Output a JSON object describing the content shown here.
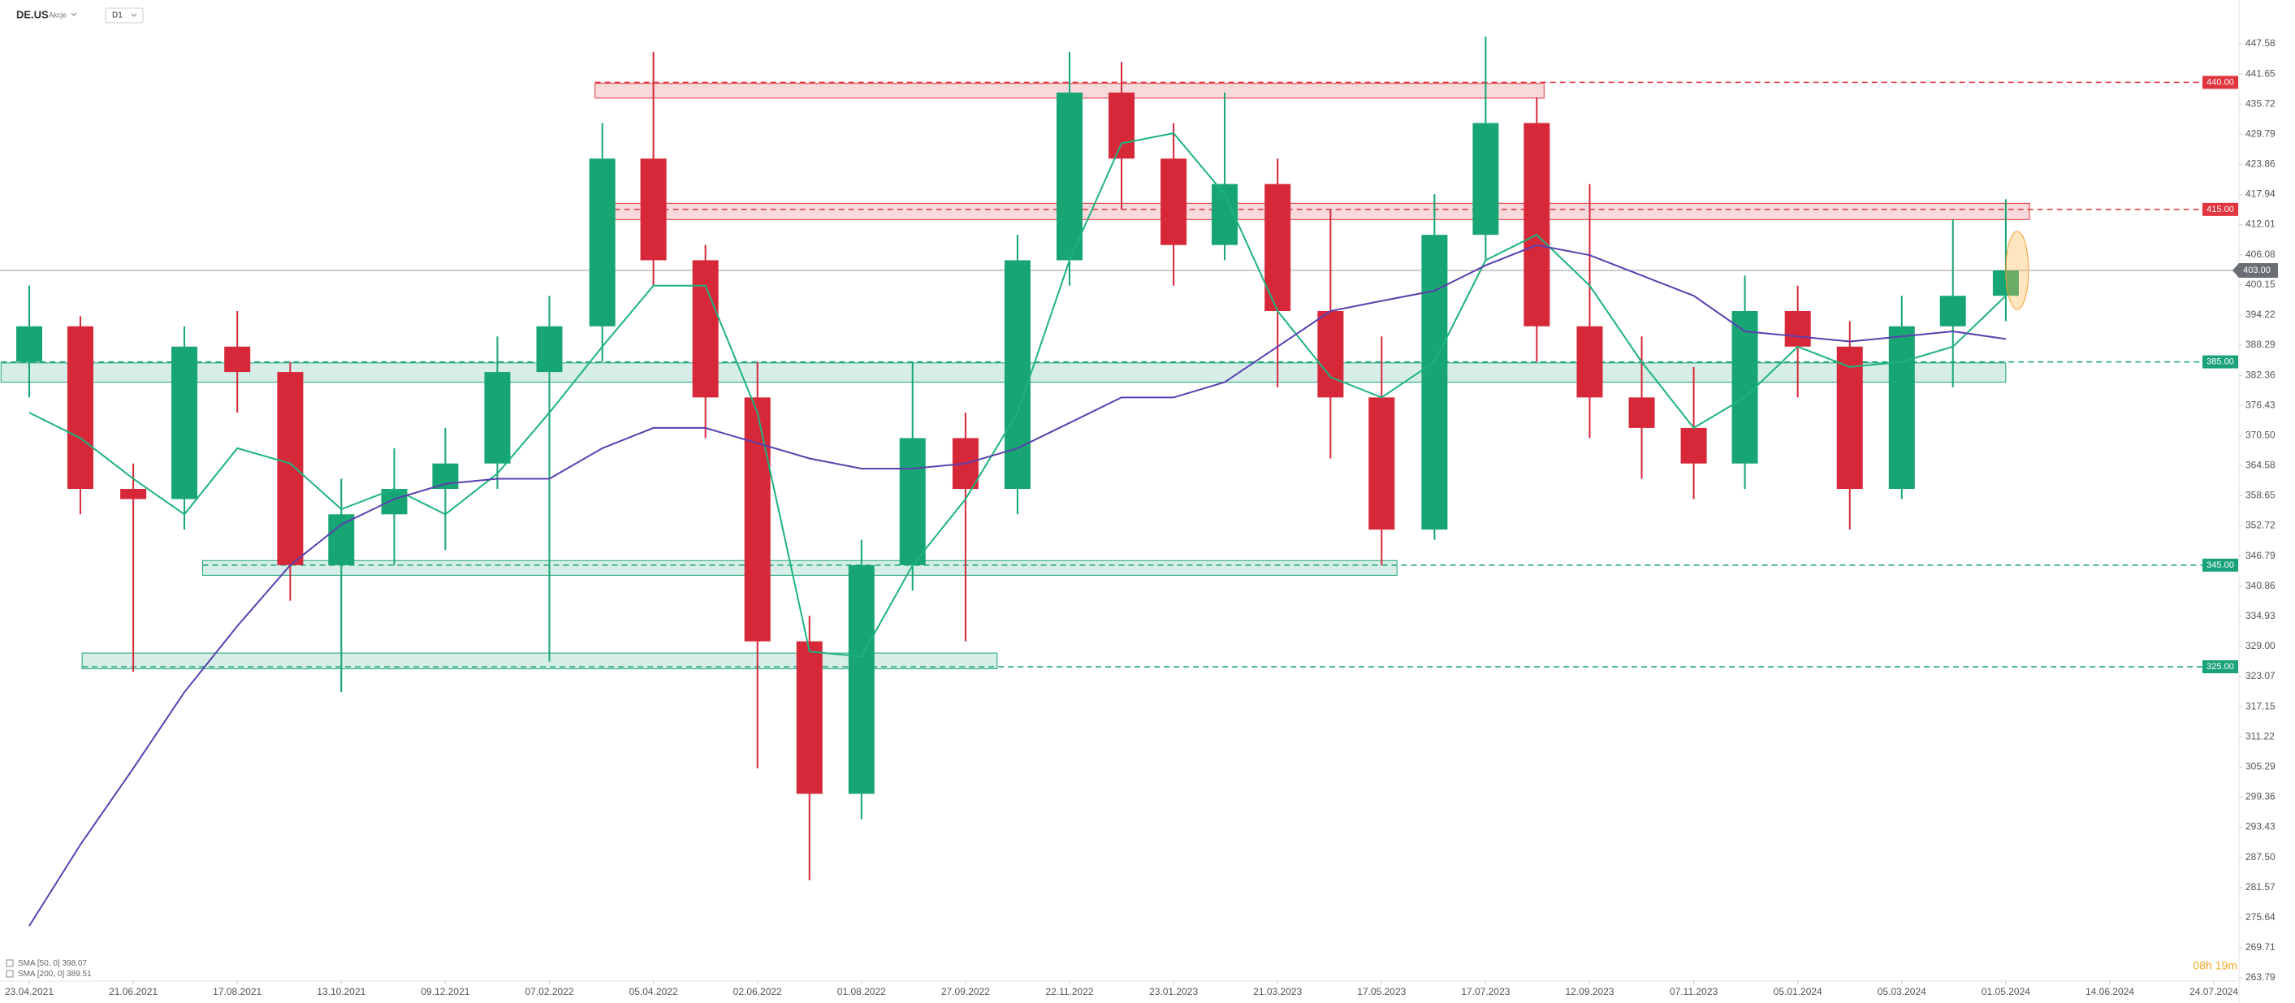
{
  "header": {
    "symbol": "DE.US",
    "asset_class": "Akcje",
    "interval": "D1"
  },
  "footer": {
    "timer": "08h 19m"
  },
  "chart_data": {
    "type": "candlestick",
    "x": [
      "23.04.2021",
      "22.05.2021",
      "21.06.2021",
      "19.07.2021",
      "17.08.2021",
      "15.09.2021",
      "13.10.2021",
      "11.11.2021",
      "09.12.2021",
      "08.01.2022",
      "07.02.2022",
      "08.03.2022",
      "05.04.2022",
      "04.05.2022",
      "02.06.2022",
      "02.07.2022",
      "01.08.2022",
      "29.08.2022",
      "27.09.2022",
      "25.10.2022",
      "22.11.2022",
      "23.12.2022",
      "23.01.2023",
      "20.02.2023",
      "21.03.2023",
      "19.04.2023",
      "17.05.2023",
      "17.06.2023",
      "17.07.2023",
      "14.08.2023",
      "12.09.2023",
      "10.10.2023",
      "07.11.2023",
      "06.12.2023",
      "05.01.2024",
      "04.02.2024",
      "05.03.2024",
      "02.04.2024",
      "01.05.2024"
    ],
    "open": [
      385,
      392,
      360,
      358,
      388,
      383,
      345,
      355,
      360,
      365,
      383,
      392,
      425,
      405,
      378,
      330,
      300,
      345,
      370,
      360,
      405,
      438,
      425,
      408,
      420,
      395,
      378,
      352,
      410,
      432,
      392,
      378,
      372,
      365,
      395,
      388,
      360,
      392,
      398
    ],
    "high": [
      400,
      394,
      365,
      392,
      395,
      385,
      362,
      368,
      372,
      390,
      398,
      432,
      446,
      408,
      385,
      335,
      350,
      385,
      375,
      410,
      446,
      444,
      432,
      438,
      425,
      415,
      390,
      418,
      449,
      437,
      420,
      390,
      384,
      402,
      400,
      393,
      398,
      413,
      417
    ],
    "low": [
      378,
      355,
      324,
      352,
      375,
      338,
      320,
      345,
      348,
      360,
      326,
      385,
      400,
      370,
      305,
      283,
      295,
      340,
      330,
      355,
      400,
      415,
      400,
      405,
      380,
      366,
      345,
      350,
      405,
      385,
      370,
      362,
      358,
      360,
      378,
      352,
      358,
      380,
      393
    ],
    "close": [
      392,
      360,
      358,
      388,
      383,
      345,
      355,
      360,
      365,
      383,
      392,
      425,
      405,
      378,
      330,
      300,
      345,
      370,
      360,
      405,
      438,
      425,
      408,
      420,
      395,
      378,
      352,
      410,
      432,
      392,
      378,
      372,
      365,
      395,
      388,
      360,
      392,
      398,
      403
    ],
    "up_color": "#17a673",
    "down_color": "#d62839",
    "series": [
      {
        "name": "SMA [50, 0]",
        "last": 398.07,
        "color": "#1db37e",
        "values": [
          375,
          370,
          362,
          355,
          368,
          365,
          356,
          360,
          355,
          363,
          375,
          388,
          400,
          400,
          375,
          328,
          327,
          345,
          358,
          375,
          405,
          428,
          430,
          418,
          395,
          382,
          378,
          385,
          405,
          410,
          400,
          385,
          372,
          378,
          388,
          384,
          385,
          388,
          398
        ]
      },
      {
        "name": "SMA [200, 0]",
        "last": 389.51,
        "color": "#5b3fb0",
        "values": [
          274,
          290,
          305,
          320,
          333,
          345,
          353,
          358,
          361,
          362,
          362,
          368,
          372,
          372,
          369,
          366,
          364,
          364,
          365,
          368,
          373,
          378,
          378,
          381,
          388,
          395,
          397,
          399,
          404,
          408,
          406,
          402,
          398,
          391,
          390,
          389,
          390,
          391,
          389.5
        ]
      }
    ],
    "ylim": [
      263.79,
      447.58
    ],
    "yticks": [
      447.58,
      441.65,
      435.72,
      429.79,
      423.86,
      417.94,
      412.01,
      406.08,
      400.15,
      394.22,
      388.29,
      382.36,
      376.43,
      {
        "value": 370.5,
        "label": "370.50"
      },
      364.58,
      358.65,
      352.72,
      346.79,
      340.86,
      334.93,
      {
        "value": 329,
        "label": "329.00"
      },
      323.07,
      317.15,
      311.22,
      305.29,
      299.36,
      293.43,
      {
        "value": 287.5,
        "label": "287.50"
      },
      281.57,
      275.64,
      269.71,
      263.79
    ],
    "xticks": [
      "23.04.2021",
      "21.06.2021",
      "17.08.2021",
      "13.10.2021",
      "09.12.2021",
      "07.02.2022",
      "05.04.2022",
      "02.06.2022",
      "01.08.2022",
      "27.09.2022",
      "22.11.2022",
      "23.01.2023",
      "21.03.2023",
      "17.05.2023",
      "17.07.2023",
      "12.09.2023",
      "07.11.2023",
      "05.01.2024",
      "05.03.2024",
      "01.05.2024",
      "14.06.2024",
      "24.07.2024"
    ],
    "levels": [
      {
        "value": 440,
        "label": "440.00",
        "color": "#e0343e",
        "from": "04.03.2022",
        "to": "18.08.2023",
        "low": 436.9,
        "high": 439.8
      },
      {
        "value": 415,
        "label": "415.00",
        "color": "#e0343e",
        "from": "04.03.2022",
        "to": "11.05.2024",
        "low": 413,
        "high": 416.2
      },
      {
        "value": 385,
        "label": "385.00",
        "color": "#1aa37a",
        "from": "07.04.2021",
        "to": "01.05.2024",
        "low": 381,
        "high": 384.8
      },
      {
        "value": 345,
        "label": "345.00",
        "color": "#1aa37a",
        "from": "29.07.2021",
        "to": "26.05.2023",
        "low": 343,
        "high": 345.9
      },
      {
        "value": 325,
        "label": "325.00",
        "color": "#1aa37a",
        "from": "23.05.2021",
        "to": "14.10.2022",
        "low": 324.6,
        "high": 327.7
      }
    ],
    "last_price": {
      "value": 403,
      "label": "403.00"
    }
  }
}
